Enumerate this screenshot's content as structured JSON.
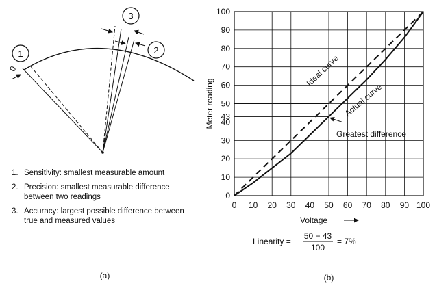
{
  "left_panel": {
    "circle_labels": [
      "1",
      "2",
      "3"
    ],
    "zero_label": "0",
    "definitions": [
      {
        "num": "1.",
        "text": "Sensitivity:  smallest measurable amount"
      },
      {
        "num": "2.",
        "text": "Precision:  smallest measurable difference between two readings"
      },
      {
        "num": "3.",
        "text": "Accuracy:  largest possible difference between true and measured values"
      }
    ],
    "caption": "(a)"
  },
  "right_panel": {
    "caption": "(b)",
    "linearity": {
      "label": "Linearity =",
      "numerator": "50 − 43",
      "denominator": "100",
      "result": "= 7%"
    }
  },
  "chart_data": {
    "type": "line",
    "xlabel": "Voltage",
    "ylabel": "Meter reading",
    "xlim": [
      0,
      100
    ],
    "ylim": [
      0,
      100
    ],
    "x_ticks": [
      0,
      10,
      20,
      30,
      40,
      50,
      60,
      70,
      80,
      90,
      100
    ],
    "y_ticks": [
      0,
      10,
      20,
      30,
      40,
      43,
      50,
      60,
      70,
      80,
      90,
      100
    ],
    "grid": true,
    "series": [
      {
        "name": "Ideal curve",
        "style": "dashed",
        "x": [
          0,
          100
        ],
        "y": [
          0,
          100
        ]
      },
      {
        "name": "Actual curve",
        "style": "solid",
        "x": [
          0,
          10,
          20,
          30,
          40,
          50,
          60,
          70,
          80,
          90,
          100
        ],
        "y": [
          0,
          7,
          15,
          23,
          33,
          43,
          53,
          63,
          74,
          86,
          100
        ]
      }
    ],
    "annotations": [
      {
        "text": "Greatest difference",
        "x": 50,
        "y": 43
      }
    ],
    "reference_lines_y": [
      50,
      43
    ]
  }
}
